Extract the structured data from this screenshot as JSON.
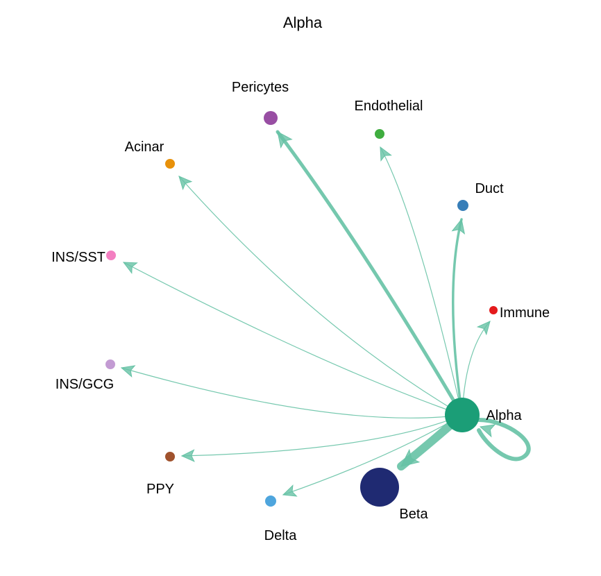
{
  "title": "Alpha",
  "source": "Alpha",
  "edge_color": "#66C2A5",
  "nodes": [
    {
      "id": "Alpha",
      "label": "Alpha",
      "color": "#1B9E77"
    },
    {
      "id": "Beta",
      "label": "Beta",
      "color": "#1F2A72"
    },
    {
      "id": "Delta",
      "label": "Delta",
      "color": "#4EA5DD"
    },
    {
      "id": "PPY",
      "label": "PPY",
      "color": "#A0522D"
    },
    {
      "id": "INS/GCG",
      "label": "INS/GCG",
      "color": "#C39BD3"
    },
    {
      "id": "INS/SST",
      "label": "INS/SST",
      "color": "#F37FC1"
    },
    {
      "id": "Acinar",
      "label": "Acinar",
      "color": "#E8910A"
    },
    {
      "id": "Pericytes",
      "label": "Pericytes",
      "color": "#984EA3"
    },
    {
      "id": "Endothelial",
      "label": "Endothelial",
      "color": "#3FAD3F"
    },
    {
      "id": "Duct",
      "label": "Duct",
      "color": "#377EB8"
    },
    {
      "id": "Immune",
      "label": "Immune",
      "color": "#E41A1C"
    }
  ],
  "edges": [
    {
      "from": "Alpha",
      "to": "Alpha"
    },
    {
      "from": "Alpha",
      "to": "Beta"
    },
    {
      "from": "Alpha",
      "to": "Delta"
    },
    {
      "from": "Alpha",
      "to": "PPY"
    },
    {
      "from": "Alpha",
      "to": "INS/GCG"
    },
    {
      "from": "Alpha",
      "to": "INS/SST"
    },
    {
      "from": "Alpha",
      "to": "Acinar"
    },
    {
      "from": "Alpha",
      "to": "Pericytes"
    },
    {
      "from": "Alpha",
      "to": "Endothelial"
    },
    {
      "from": "Alpha",
      "to": "Duct"
    },
    {
      "from": "Alpha",
      "to": "Immune"
    }
  ]
}
